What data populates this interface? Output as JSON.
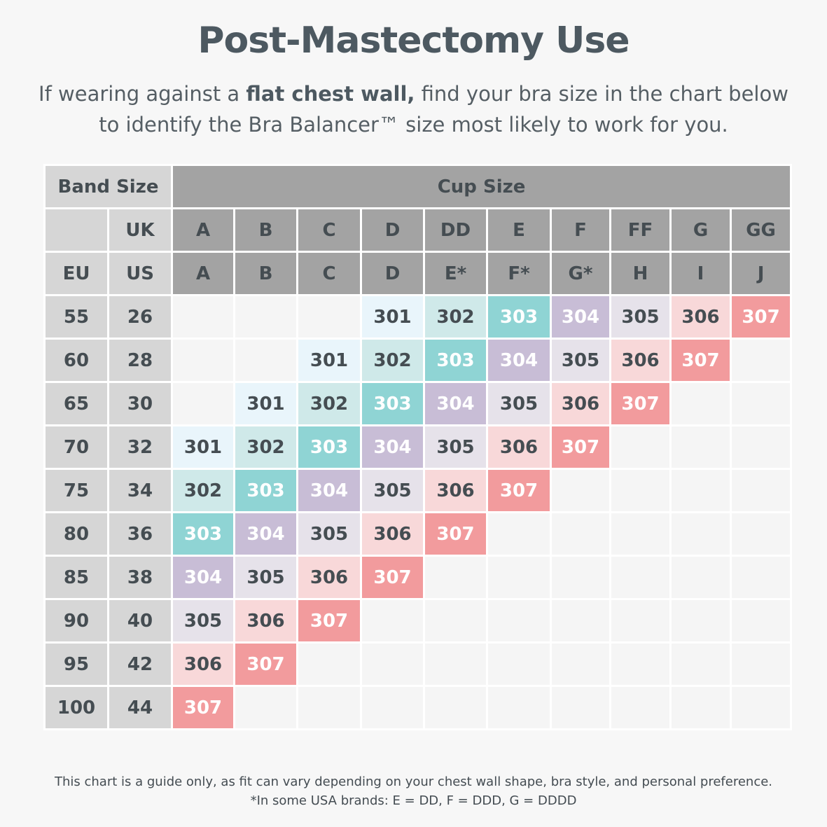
{
  "title": "Post-Mastectomy Use",
  "intro": {
    "before": "If wearing against a ",
    "bold": "flat chest wall,",
    "after": " find your bra size in the chart below to identify the Bra Balancer™ size most likely to work for you."
  },
  "table": {
    "band_header": "Band Size",
    "cup_header": "Cup Size",
    "uk_label": "UK",
    "eu_label": "EU",
    "us_label": "US",
    "uk_cups": [
      "A",
      "B",
      "C",
      "D",
      "DD",
      "E",
      "F",
      "FF",
      "G",
      "GG"
    ],
    "us_cups": [
      "A",
      "B",
      "C",
      "D",
      "E*",
      "F*",
      "G*",
      "H",
      "I",
      "J"
    ],
    "rows": [
      {
        "eu": "55",
        "us": "26",
        "cells": [
          "",
          "",
          "",
          "301",
          "302",
          "303",
          "304",
          "305",
          "306",
          "307"
        ]
      },
      {
        "eu": "60",
        "us": "28",
        "cells": [
          "",
          "",
          "301",
          "302",
          "303",
          "304",
          "305",
          "306",
          "307",
          ""
        ]
      },
      {
        "eu": "65",
        "us": "30",
        "cells": [
          "",
          "301",
          "302",
          "303",
          "304",
          "305",
          "306",
          "307",
          "",
          ""
        ]
      },
      {
        "eu": "70",
        "us": "32",
        "cells": [
          "301",
          "302",
          "303",
          "304",
          "305",
          "306",
          "307",
          "",
          "",
          ""
        ]
      },
      {
        "eu": "75",
        "us": "34",
        "cells": [
          "302",
          "303",
          "304",
          "305",
          "306",
          "307",
          "",
          "",
          "",
          ""
        ]
      },
      {
        "eu": "80",
        "us": "36",
        "cells": [
          "303",
          "304",
          "305",
          "306",
          "307",
          "",
          "",
          "",
          "",
          ""
        ]
      },
      {
        "eu": "85",
        "us": "38",
        "cells": [
          "304",
          "305",
          "306",
          "307",
          "",
          "",
          "",
          "",
          "",
          ""
        ]
      },
      {
        "eu": "90",
        "us": "40",
        "cells": [
          "305",
          "306",
          "307",
          "",
          "",
          "",
          "",
          "",
          "",
          ""
        ]
      },
      {
        "eu": "95",
        "us": "42",
        "cells": [
          "306",
          "307",
          "",
          "",
          "",
          "",
          "",
          "",
          "",
          ""
        ]
      },
      {
        "eu": "100",
        "us": "44",
        "cells": [
          "307",
          "",
          "",
          "",
          "",
          "",
          "",
          "",
          "",
          ""
        ]
      }
    ]
  },
  "size_colors": {
    "301": "#e9f5fb",
    "302": "#cfe9e9",
    "303": "#8fd4d4",
    "304": "#c8bdd6",
    "305": "#e6e2ea",
    "306": "#f8d8d9",
    "307": "#f29b9d"
  },
  "footer": {
    "line1": "This chart is a guide only, as fit can vary depending on your chest wall shape, bra style, and personal preference.",
    "line2": "*In some USA brands: E = DD, F = DDD, G = DDDD"
  }
}
